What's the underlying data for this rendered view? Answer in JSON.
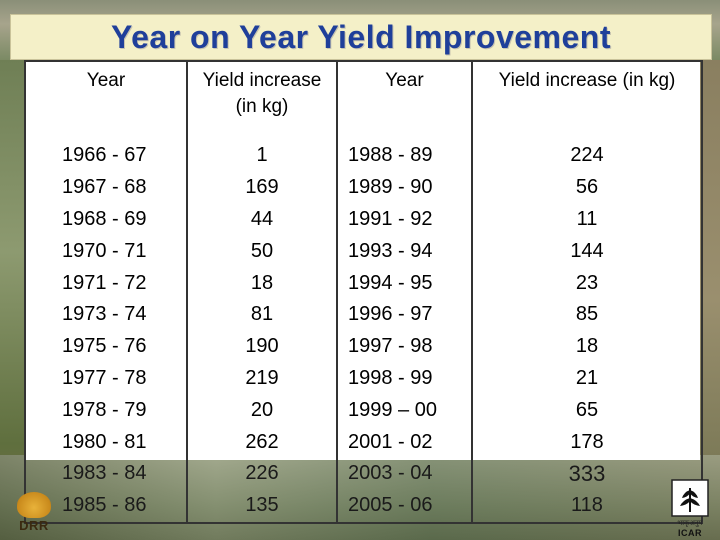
{
  "title": "Year on Year Yield Improvement",
  "headers": [
    "Year",
    "Yield increase (in kg)",
    "Year",
    "Yield increase (in kg)"
  ],
  "rows": [
    [
      "1966 - 67",
      "1",
      "1988 - 89",
      "224"
    ],
    [
      "1967 - 68",
      "169",
      "1989 - 90",
      "56"
    ],
    [
      "1968 - 69",
      "44",
      "1991 - 92",
      "11"
    ],
    [
      "1970 - 71",
      "50",
      "1993 - 94",
      "144"
    ],
    [
      "1971 - 72",
      "18",
      "1994 - 95",
      "23"
    ],
    [
      "1973 - 74",
      "81",
      "1996 - 97",
      "85"
    ],
    [
      "1975 - 76",
      "190",
      "1997 - 98",
      "18"
    ],
    [
      "1977 - 78",
      "219",
      "1998 - 99",
      "21"
    ],
    [
      "1978 - 79",
      "20",
      "1999 – 00",
      "65"
    ],
    [
      "1980 - 81",
      "262",
      "2001 - 02",
      "178"
    ],
    [
      "1983 - 84",
      "226",
      "2003 - 04",
      "333"
    ],
    [
      "1985 - 86",
      "135",
      "2005 - 06",
      "118"
    ]
  ],
  "logos": {
    "left_text": "DRR",
    "right_text": "ICAR",
    "right_subtext": "भाकृअनुप"
  },
  "colors": {
    "title": "#1f3f9a",
    "title_box": "#f4f0c8"
  }
}
